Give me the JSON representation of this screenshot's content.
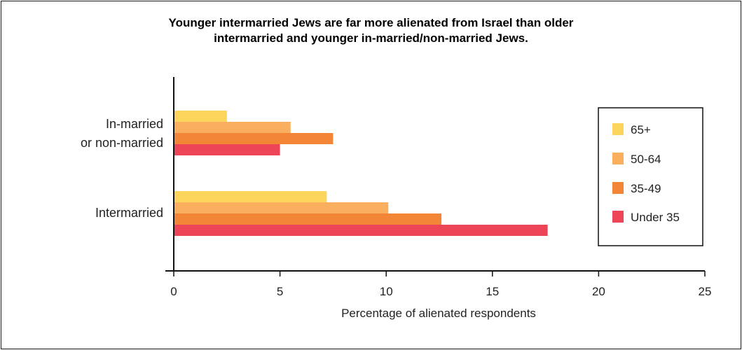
{
  "chart_data": {
    "type": "bar",
    "orientation": "horizontal",
    "title_lines": [
      "Younger intermarried Jews are far more alienated from Israel than older",
      "intermarried and younger in-married/non-married Jews."
    ],
    "categories": [
      {
        "lines": [
          "In-married",
          "or non-married"
        ]
      },
      {
        "lines": [
          "Intermarried"
        ]
      }
    ],
    "series": [
      {
        "name": "65+",
        "color": "#FDD45C",
        "values": [
          2.5,
          7.2
        ]
      },
      {
        "name": "50-64",
        "color": "#F9AF5E",
        "values": [
          5.5,
          10.1
        ]
      },
      {
        "name": "35-49",
        "color": "#F38536",
        "values": [
          7.5,
          12.6
        ]
      },
      {
        "name": "Under 35",
        "color": "#EE4458",
        "values": [
          5.0,
          17.6
        ]
      }
    ],
    "xlim": [
      0,
      25
    ],
    "xticks": [
      "0",
      "5",
      "10",
      "15",
      "20",
      "25"
    ],
    "xlabel": "Percentage of alienated respondents",
    "ylabel": "",
    "grid": false,
    "legend_position": "right"
  }
}
